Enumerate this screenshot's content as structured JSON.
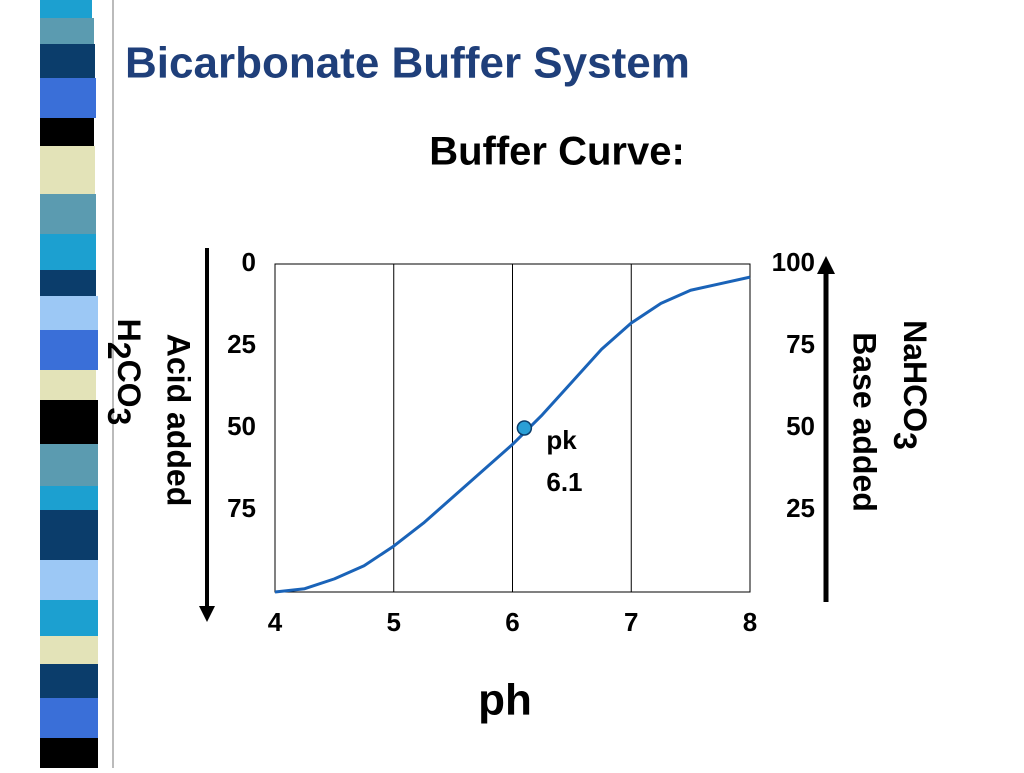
{
  "slide_title": "Bicarbonate Buffer System",
  "chart_data": {
    "type": "line",
    "title": "Buffer Curve:",
    "xlabel": "ph",
    "ylabel": "Acid added",
    "ylabel_formula": [
      "H",
      "2",
      "CO",
      "3"
    ],
    "y2label": "Base added",
    "y2label_formula": [
      "NaHCO",
      "3"
    ],
    "xlim": [
      4,
      8
    ],
    "xticks": [
      4,
      5,
      6,
      7,
      8
    ],
    "ylim": [
      100,
      0
    ],
    "yticks": [
      0,
      25,
      50,
      75
    ],
    "y2lim": [
      0,
      100
    ],
    "y2ticks": [
      100,
      75,
      50,
      25
    ],
    "grid": true,
    "series": [
      {
        "color": "#1a63b8",
        "axis": "y2",
        "x": [
          4.0,
          4.25,
          4.5,
          4.75,
          5.0,
          5.25,
          5.5,
          5.75,
          6.0,
          6.25,
          6.5,
          6.75,
          7.0,
          7.25,
          7.5,
          7.75,
          8.0
        ],
        "values": [
          0,
          1,
          4,
          8,
          14,
          21,
          29,
          37,
          45,
          54,
          64,
          74,
          82,
          88,
          92,
          94,
          96
        ]
      }
    ],
    "pk_point": {
      "label": "pk",
      "x": 6.1,
      "y": 50,
      "color": "#2a9fd6"
    }
  }
}
